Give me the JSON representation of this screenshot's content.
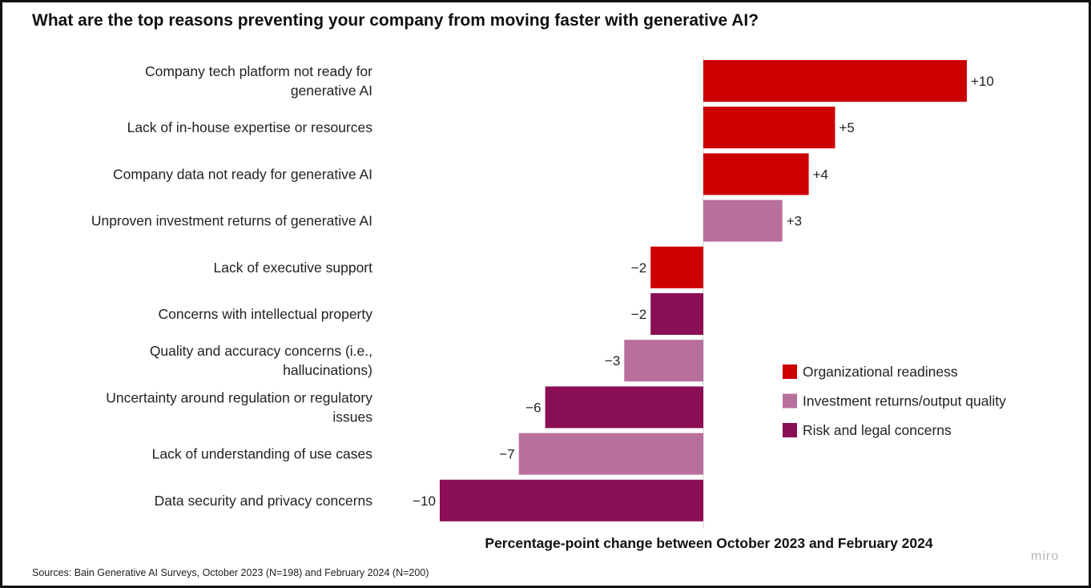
{
  "title": "What are the top reasons preventing your company from moving faster with generative AI?",
  "source": "Sources: Bain Generative AI Surveys, October 2023 (N=198) and February 2024 (N=200)",
  "watermark": "miro",
  "colors": {
    "Organizational readiness": "#cc0000",
    "Investment returns/output quality": "#b86f9c",
    "Risk and legal concerns": "#8b0f55"
  },
  "chart_data": {
    "type": "bar",
    "orientation": "horizontal",
    "title": "What are the top reasons preventing your company from moving faster with generative AI?",
    "xlabel": "Percentage-point change between October 2023 and February 2024",
    "ylabel": "",
    "xlim": [
      -10,
      10
    ],
    "grid": false,
    "legend": {
      "position": "right",
      "entries": [
        "Organizational readiness",
        "Investment returns/output quality",
        "Risk and legal concerns"
      ]
    },
    "bars": [
      {
        "label": [
          "Company tech platform not ready for",
          "generative AI"
        ],
        "value": 10,
        "display": "+10",
        "group": "Organizational readiness"
      },
      {
        "label": [
          "Lack of in-house expertise or resources"
        ],
        "value": 5,
        "display": "+5",
        "group": "Organizational readiness"
      },
      {
        "label": [
          "Company data not ready for generative AI"
        ],
        "value": 4,
        "display": "+4",
        "group": "Organizational readiness"
      },
      {
        "label": [
          "Unproven investment returns of generative AI"
        ],
        "value": 3,
        "display": "+3",
        "group": "Investment returns/output quality"
      },
      {
        "label": [
          "Lack of executive support"
        ],
        "value": -2,
        "display": "−2",
        "group": "Organizational readiness"
      },
      {
        "label": [
          "Concerns with intellectual property"
        ],
        "value": -2,
        "display": "−2",
        "group": "Risk and legal concerns"
      },
      {
        "label": [
          "Quality and accuracy concerns (i.e.,",
          "hallucinations)"
        ],
        "value": -3,
        "display": "−3",
        "group": "Investment returns/output quality"
      },
      {
        "label": [
          "Uncertainty around regulation or regulatory",
          "issues"
        ],
        "value": -6,
        "display": "−6",
        "group": "Risk and legal concerns"
      },
      {
        "label": [
          "Lack of understanding of use cases"
        ],
        "value": -7,
        "display": "−7",
        "group": "Investment returns/output quality"
      },
      {
        "label": [
          "Data security and privacy concerns"
        ],
        "value": -10,
        "display": "−10",
        "group": "Risk and legal concerns"
      }
    ]
  }
}
